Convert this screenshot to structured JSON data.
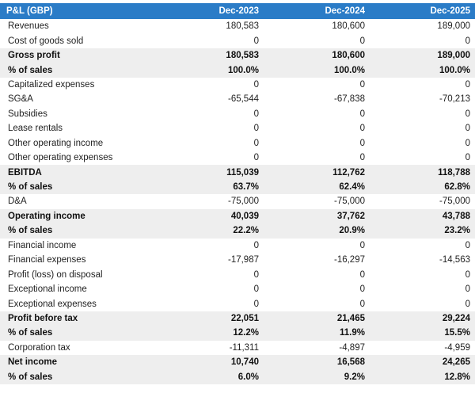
{
  "table": {
    "header": [
      "P&L (GBP)",
      "Dec-2023",
      "Dec-2024",
      "Dec-2025"
    ],
    "rows": [
      {
        "label": "Revenues",
        "values": [
          "180,583",
          "180,600",
          "189,000"
        ],
        "bold": false
      },
      {
        "label": "Cost of goods sold",
        "values": [
          "0",
          "0",
          "0"
        ],
        "bold": false
      },
      {
        "label": "Gross profit",
        "values": [
          "180,583",
          "180,600",
          "189,000"
        ],
        "bold": true
      },
      {
        "label": "% of sales",
        "values": [
          "100.0%",
          "100.0%",
          "100.0%"
        ],
        "bold": true
      },
      {
        "label": "Capitalized expenses",
        "values": [
          "0",
          "0",
          "0"
        ],
        "bold": false
      },
      {
        "label": "SG&A",
        "values": [
          "-65,544",
          "-67,838",
          "-70,213"
        ],
        "bold": false
      },
      {
        "label": "Subsidies",
        "values": [
          "0",
          "0",
          "0"
        ],
        "bold": false
      },
      {
        "label": "Lease rentals",
        "values": [
          "0",
          "0",
          "0"
        ],
        "bold": false
      },
      {
        "label": "Other operating income",
        "values": [
          "0",
          "0",
          "0"
        ],
        "bold": false
      },
      {
        "label": "Other operating expenses",
        "values": [
          "0",
          "0",
          "0"
        ],
        "bold": false
      },
      {
        "label": "EBITDA",
        "values": [
          "115,039",
          "112,762",
          "118,788"
        ],
        "bold": true
      },
      {
        "label": "% of sales",
        "values": [
          "63.7%",
          "62.4%",
          "62.8%"
        ],
        "bold": true
      },
      {
        "label": "D&A",
        "values": [
          "-75,000",
          "-75,000",
          "-75,000"
        ],
        "bold": false
      },
      {
        "label": "Operating income",
        "values": [
          "40,039",
          "37,762",
          "43,788"
        ],
        "bold": true
      },
      {
        "label": "% of sales",
        "values": [
          "22.2%",
          "20.9%",
          "23.2%"
        ],
        "bold": true
      },
      {
        "label": "Financial income",
        "values": [
          "0",
          "0",
          "0"
        ],
        "bold": false
      },
      {
        "label": "Financial expenses",
        "values": [
          "-17,987",
          "-16,297",
          "-14,563"
        ],
        "bold": false
      },
      {
        "label": "Profit (loss) on disposal",
        "values": [
          "0",
          "0",
          "0"
        ],
        "bold": false
      },
      {
        "label": "Exceptional income",
        "values": [
          "0",
          "0",
          "0"
        ],
        "bold": false
      },
      {
        "label": "Exceptional expenses",
        "values": [
          "0",
          "0",
          "0"
        ],
        "bold": false
      },
      {
        "label": "Profit before tax",
        "values": [
          "22,051",
          "21,465",
          "29,224"
        ],
        "bold": true
      },
      {
        "label": "% of sales",
        "values": [
          "12.2%",
          "11.9%",
          "15.5%"
        ],
        "bold": true
      },
      {
        "label": "Corporation tax",
        "values": [
          "-11,311",
          "-4,897",
          "-4,959"
        ],
        "bold": false
      },
      {
        "label": "Net income",
        "values": [
          "10,740",
          "16,568",
          "24,265"
        ],
        "bold": true
      },
      {
        "label": "% of sales",
        "values": [
          "6.0%",
          "9.2%",
          "12.8%"
        ],
        "bold": true
      }
    ]
  },
  "colors": {
    "header_bg": "#2b7cc7",
    "header_text": "#ffffff",
    "bold_row_bg": "#eeeeee"
  }
}
